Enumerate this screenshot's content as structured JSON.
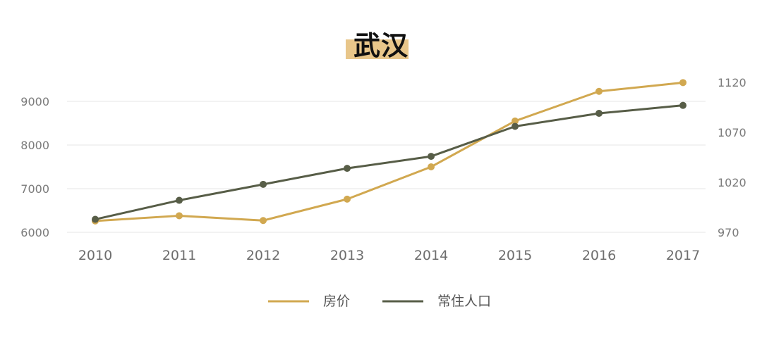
{
  "chart_data": {
    "type": "line",
    "title": "武汉",
    "x": [
      "2010",
      "2011",
      "2012",
      "2013",
      "2014",
      "2015",
      "2016",
      "2017"
    ],
    "series": [
      {
        "name": "房价",
        "axis": "left",
        "color": "#D1A850",
        "values": [
          6260,
          6380,
          6270,
          6760,
          7500,
          8550,
          9230,
          9430
        ]
      },
      {
        "name": "常住人口",
        "axis": "right",
        "color": "#575D47",
        "values": [
          983,
          1002,
          1018,
          1034,
          1046,
          1076,
          1089,
          1097
        ]
      }
    ],
    "y_left": {
      "ticks": [
        6000,
        7000,
        8000,
        9000
      ],
      "range": [
        6000,
        9000
      ]
    },
    "y_right": {
      "ticks": [
        970,
        1020,
        1070,
        1120
      ],
      "range": [
        970,
        1120
      ]
    },
    "grid": true,
    "legend_position": "bottom"
  }
}
